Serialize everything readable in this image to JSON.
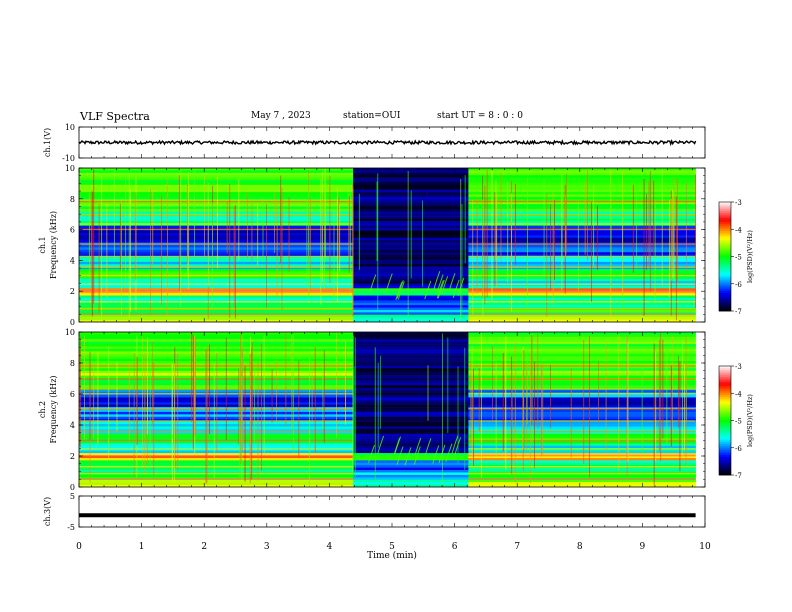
{
  "header": {
    "title": "VLF Spectra",
    "date": "May 7 , 2023",
    "station": "station=OUI",
    "start": "start UT =  8 : 0 : 0"
  },
  "chart_data": [
    {
      "type": "line",
      "panel": "ch1-voltage",
      "ylabel": "ch.1(V)",
      "ylim": [
        -10,
        10
      ],
      "ytick_labels": [
        "10",
        "-10"
      ],
      "xlim": [
        0,
        10
      ],
      "x_start": 0,
      "x_end": 9.85,
      "baseline": 0,
      "noise_band": [
        -1,
        1
      ],
      "color": "#000000"
    },
    {
      "type": "heatmap",
      "panel": "ch1-spectrogram",
      "ylabel": "ch.1\nFrequency (kHz)",
      "xlim": [
        0,
        10
      ],
      "ylim": [
        0,
        10
      ],
      "ytick_labels": [
        "0",
        "2",
        "4",
        "6",
        "8",
        "10"
      ],
      "x_end": 9.85,
      "quiet_interval": [
        4.38,
        6.22
      ],
      "colorbar": {
        "label": "log(PSD)(V²/Hz)",
        "range": [
          -7,
          -3
        ],
        "tick_labels": [
          "-3",
          "-4",
          "-5",
          "-6",
          "-7"
        ],
        "colors": [
          "#000000",
          "#0000ff",
          "#00ffff",
          "#00ff00",
          "#ffff00",
          "#ff0000",
          "#ffffff"
        ]
      }
    },
    {
      "type": "heatmap",
      "panel": "ch2-spectrogram",
      "ylabel": "ch.2\nFrequency (kHz)",
      "xlim": [
        0,
        10
      ],
      "ylim": [
        0,
        10
      ],
      "ytick_labels": [
        "0",
        "2",
        "4",
        "6",
        "8",
        "10"
      ],
      "x_end": 9.85,
      "quiet_interval": [
        4.38,
        6.22
      ],
      "colorbar": {
        "label": "log(PSD)(V²/Hz)",
        "range": [
          -7,
          -3
        ],
        "tick_labels": [
          "-3",
          "-4",
          "-5",
          "-6",
          "-7"
        ],
        "colors": [
          "#000000",
          "#0000ff",
          "#00ffff",
          "#00ff00",
          "#ffff00",
          "#ff0000",
          "#ffffff"
        ]
      }
    },
    {
      "type": "line",
      "panel": "ch3-voltage",
      "ylabel": "ch.3(V)",
      "ylim": [
        -5,
        5
      ],
      "ytick_labels": [
        "5",
        "-5"
      ],
      "xlim": [
        0,
        10
      ],
      "x_start": 0,
      "x_end": 9.85,
      "baseline": -1.2,
      "color": "#000000",
      "xlabel": "Time (min)",
      "xtick_labels": [
        "0",
        "1",
        "2",
        "3",
        "4",
        "5",
        "6",
        "7",
        "8",
        "9",
        "10"
      ]
    }
  ]
}
